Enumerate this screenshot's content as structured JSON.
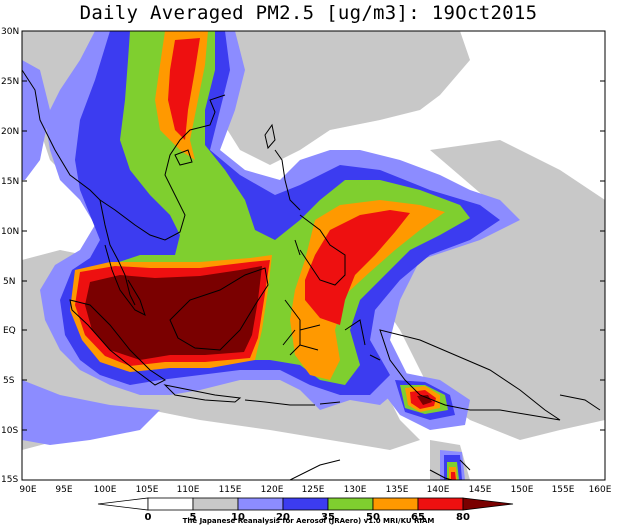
{
  "title": "Daily Averaged PM2.5 [ug/m3]: 19Oct2015",
  "credit": "The Japanese Reanalysis for Aerosol (JRAero) v1.0 MRI/KU RIAM",
  "map": {
    "lat_range": [
      -15,
      30
    ],
    "lon_range": [
      90,
      160
    ],
    "lat_ticks": [
      "30N",
      "25N",
      "20N",
      "15N",
      "10N",
      "5N",
      "EQ",
      "5S",
      "10S",
      "15S"
    ],
    "lon_ticks": [
      "90E",
      "95E",
      "100E",
      "105E",
      "110E",
      "115E",
      "120E",
      "125E",
      "130E",
      "135E",
      "140E",
      "145E",
      "150E",
      "155E",
      "160E"
    ]
  },
  "colorbar": {
    "levels": [
      "0",
      "5",
      "10",
      "20",
      "35",
      "50",
      "65",
      "80"
    ],
    "colors": [
      "#ffffff",
      "#ffffff",
      "#c8c8c8",
      "#8c8cff",
      "#3c3cf0",
      "#7fcf2f",
      "#ff9900",
      "#ee1010",
      "#7a0000"
    ],
    "units": "ug/m3"
  },
  "colors": {
    "gray": "#c8c8c8",
    "lightblue": "#8c8cff",
    "blue": "#3c3cf0",
    "green": "#7fcf2f",
    "orange": "#ff9900",
    "red": "#ee1010",
    "darkred": "#7a0000"
  }
}
